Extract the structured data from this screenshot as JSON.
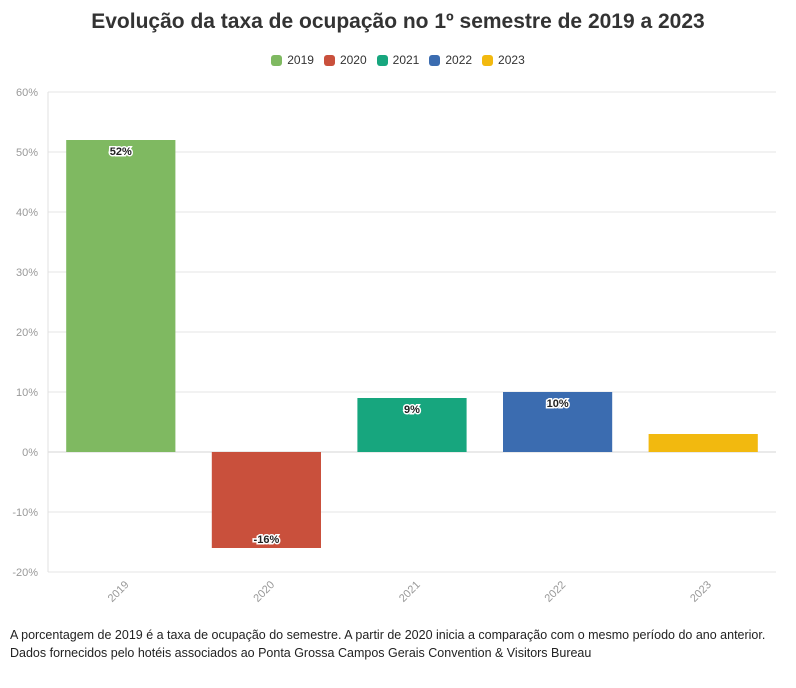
{
  "title": "Evolução da taxa de ocupação no 1º semestre de 2019 a 2023",
  "chart_data": {
    "type": "bar",
    "title": "Evolução da taxa de ocupação no 1º semestre de 2019 a 2023",
    "categories": [
      "2019",
      "2020",
      "2021",
      "2022",
      "2023"
    ],
    "values": [
      52,
      -16,
      9,
      10,
      3
    ],
    "data_labels": [
      "52%",
      "-16%",
      "9%",
      "10%",
      ""
    ],
    "colors": [
      "#7fb961",
      "#c9503c",
      "#17a67e",
      "#3b6cb0",
      "#f2b90f"
    ],
    "legend": [
      "2019",
      "2020",
      "2021",
      "2022",
      "2023"
    ],
    "legend_position": "top",
    "ylim": [
      -20,
      60
    ],
    "yticks": [
      -20,
      -10,
      0,
      10,
      20,
      30,
      40,
      50,
      60
    ],
    "ytick_labels": [
      "-20%",
      "-10%",
      "0%",
      "10%",
      "20%",
      "30%",
      "40%",
      "50%",
      "60%"
    ],
    "grid": true,
    "xlabel": "",
    "ylabel": ""
  },
  "footnote": {
    "line1": "A porcentagem de 2019 é a taxa de ocupação do semestre. A partir de 2020 inicia a comparação com o mesmo período do ano anterior.",
    "line2": "Dados fornecidos pelo hotéis associados ao Ponta Grossa Campos Gerais Convention & Visitors Bureau"
  }
}
